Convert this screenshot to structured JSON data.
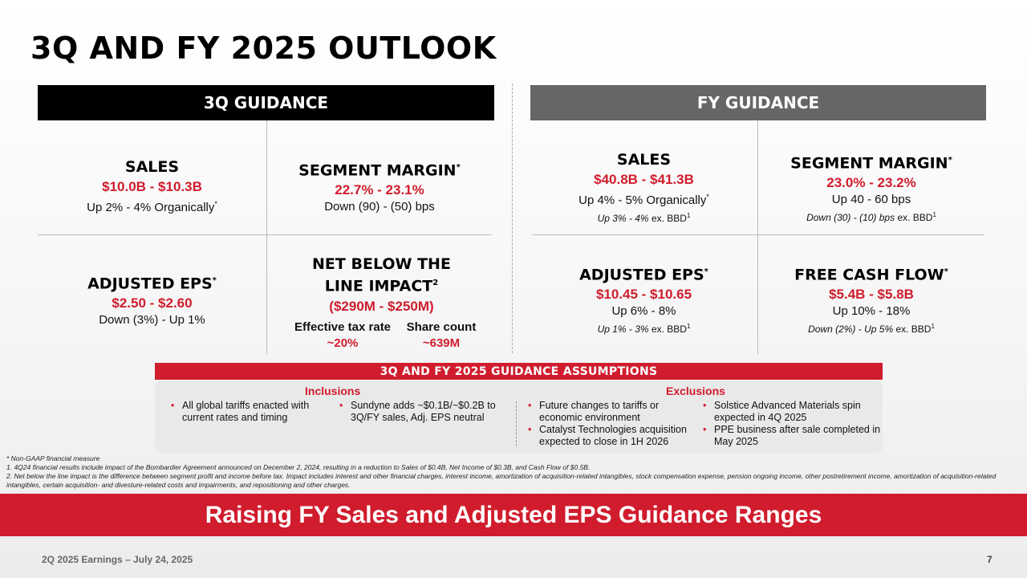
{
  "title": "3Q AND FY 2025 OUTLOOK",
  "q_header": "3Q GUIDANCE",
  "fy_header": "FY GUIDANCE",
  "q": {
    "sales": {
      "label": "SALES",
      "value": "$10.0B - $10.3B",
      "sub": "Up 2% - 4% Organically",
      "sup": "*"
    },
    "margin": {
      "label": "SEGMENT MARGIN",
      "sup": "*",
      "value": "22.7% - 23.1%",
      "sub": "Down (90) - (50) bps"
    },
    "eps": {
      "label": "ADJUSTED EPS",
      "sup": "*",
      "value": "$2.50 - $2.60",
      "sub": "Down (3%) - Up 1%"
    },
    "nbl": {
      "label1": "NET BELOW THE",
      "label2": "LINE IMPACT",
      "sup": "2",
      "value": "($290M - $250M)",
      "tax_label": "Effective tax rate",
      "tax_value": "~20%",
      "share_label": "Share count",
      "share_value": "~639M"
    }
  },
  "fy": {
    "sales": {
      "label": "SALES",
      "value": "$40.8B - $41.3B",
      "sub": "Up 4% - 5% Organically",
      "sup": "*",
      "small": "Up 3% - 4%",
      "small_ex": " ex. BBD",
      "small_sup": "1"
    },
    "margin": {
      "label": "SEGMENT MARGIN",
      "sup": "*",
      "value": "23.0% - 23.2%",
      "sub": "Up 40 - 60 bps",
      "small": "Down (30) - (10) bps",
      "small_ex": " ex. BBD",
      "small_sup": "1"
    },
    "eps": {
      "label": "ADJUSTED EPS",
      "sup": "*",
      "value": "$10.45 - $10.65",
      "sub": "Up 6% - 8%",
      "small": "Up 1% - 3%",
      "small_ex": " ex. BBD",
      "small_sup": "1"
    },
    "fcf": {
      "label": "FREE CASH FLOW",
      "sup": "*",
      "value": "$5.4B - $5.8B",
      "sub": "Up 10% - 18%",
      "small": "Down (2%) - Up 5%",
      "small_ex": " ex. BBD",
      "small_sup": "1"
    }
  },
  "assumptions": {
    "header": "3Q AND FY 2025 GUIDANCE ASSUMPTIONS",
    "inclusions_title": "Inclusions",
    "exclusions_title": "Exclusions",
    "inc1": "All global tariffs enacted with current rates and timing",
    "inc2": "Sundyne adds ~$0.1B/~$0.2B to 3Q/FY sales, Adj. EPS neutral",
    "exc1": "Future changes to tariffs or economic environment",
    "exc2": "Catalyst Technologies acquisition expected to close in 1H 2026",
    "exc3": "Solstice Advanced Materials spin expected in 4Q 2025",
    "exc4": "PPE business after sale completed in May 2025"
  },
  "footnotes": {
    "star": "* Non-GAAP financial measure",
    "f1": "1. 4Q24 financial results include impact of the Bombardier Agreement announced on December 2, 2024, resulting in a reduction to Sales of $0.4B, Net Income of $0.3B, and Cash Flow of $0.5B.",
    "f2": "2. Net below the line impact is the difference between segment profit and income before tax. Impact includes interest and other financial charges, interest income, amortization of acquisition-related intangibles, stock compensation expense, pension ongoing income, other postretirement income, amortization of acquisition-related intangibles, certain acquisition- and divesture-related costs and impairments, and repositioning and other charges."
  },
  "banner": "Raising FY Sales and Adjusted EPS Guidance Ranges",
  "footer_left": "2Q 2025 Earnings – July 24, 2025",
  "page_number": "7",
  "colors": {
    "accent": "#d01c2d",
    "q_bar": "#000000",
    "fy_bar": "#666666"
  }
}
